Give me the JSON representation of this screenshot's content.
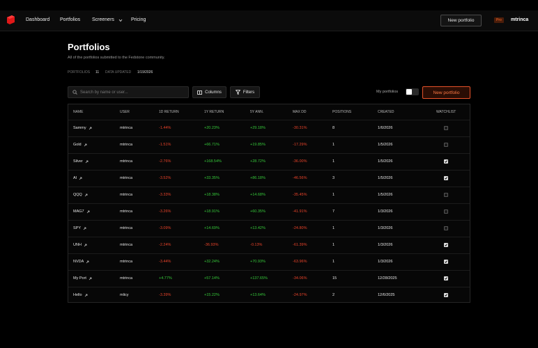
{
  "nav": {
    "items": [
      "Dashboard",
      "Portfolios",
      "Screeners",
      "Pricing"
    ],
    "new_button": "New portfolio",
    "badge": "Pro",
    "user": "mtrinca"
  },
  "header": {
    "title": "Portfolios",
    "subtitle": "All of the portfolios submitted to the Fedstone community.",
    "stats": [
      {
        "label": "PORTFOLIOS",
        "value": "11"
      },
      {
        "label": "DATA UPDATED",
        "value": "1/19/2026"
      }
    ]
  },
  "toolbar": {
    "search_placeholder": "Search by name or user...",
    "columns": "Columns",
    "filters": "Filters",
    "toggle_label": "My portfolios",
    "new_button": "New portfolio"
  },
  "table": {
    "columns": [
      "NAME",
      "USER",
      "1D RETURN",
      "1Y RETURN",
      "5Y ANN.",
      "MAX DD",
      "POSITIONS",
      "CREATED",
      "WATCHLIST"
    ],
    "rows": [
      {
        "name": "Sammy",
        "user": "mtrinca",
        "return_1d": "-1.44%",
        "return_1y": "+20.23%",
        "ann_5y": "+29.18%",
        "max_dd": "-30.31%",
        "positions": 8,
        "created": "1/6/2026",
        "watchlist": false
      },
      {
        "name": "Gold",
        "user": "mtrinca",
        "return_1d": "-1.51%",
        "return_1y": "+66.71%",
        "ann_5y": "+19.85%",
        "max_dd": "-17.29%",
        "positions": 1,
        "created": "1/5/2026",
        "watchlist": false
      },
      {
        "name": "Silver",
        "user": "mtrinca",
        "return_1d": "-2.76%",
        "return_1y": "+168.54%",
        "ann_5y": "+28.72%",
        "max_dd": "-36.00%",
        "positions": 1,
        "created": "1/5/2026",
        "watchlist": true
      },
      {
        "name": "AI",
        "user": "mtrinca",
        "return_1d": "-3.52%",
        "return_1y": "+33.35%",
        "ann_5y": "+86.18%",
        "max_dd": "-46.56%",
        "positions": 3,
        "created": "1/5/2026",
        "watchlist": true
      },
      {
        "name": "QQQ",
        "user": "mtrinca",
        "return_1d": "-3.33%",
        "return_1y": "+18.38%",
        "ann_5y": "+14.68%",
        "max_dd": "-35.45%",
        "positions": 1,
        "created": "1/5/2026",
        "watchlist": false
      },
      {
        "name": "MAG7",
        "user": "mtrinca",
        "return_1d": "-3.26%",
        "return_1y": "+18.91%",
        "ann_5y": "+60.35%",
        "max_dd": "-41.91%",
        "positions": 7,
        "created": "1/3/2026",
        "watchlist": false
      },
      {
        "name": "SPY",
        "user": "mtrinca",
        "return_1d": "-3.09%",
        "return_1y": "+14.69%",
        "ann_5y": "+13.42%",
        "max_dd": "-24.80%",
        "positions": 1,
        "created": "1/3/2026",
        "watchlist": false
      },
      {
        "name": "UNH",
        "user": "mtrinca",
        "return_1d": "-2.24%",
        "return_1y": "-36.93%",
        "ann_5y": "-0.13%",
        "max_dd": "-61.39%",
        "positions": 1,
        "created": "1/3/2026",
        "watchlist": true
      },
      {
        "name": "NVDA",
        "user": "mtrinca",
        "return_1d": "-3.44%",
        "return_1y": "+32.24%",
        "ann_5y": "+70.93%",
        "max_dd": "-63.96%",
        "positions": 1,
        "created": "1/3/2026",
        "watchlist": true
      },
      {
        "name": "My Port",
        "user": "mtrinca",
        "return_1d": "+4.77%",
        "return_1y": "+57.14%",
        "ann_5y": "+137.65%",
        "max_dd": "-34.06%",
        "positions": 15,
        "created": "12/28/2025",
        "watchlist": true
      },
      {
        "name": "Hello",
        "user": "mlicy",
        "return_1d": "-3.39%",
        "return_1y": "+15.22%",
        "ann_5y": "+13.64%",
        "max_dd": "-24.97%",
        "positions": 2,
        "created": "12/6/2025",
        "watchlist": true
      }
    ]
  }
}
